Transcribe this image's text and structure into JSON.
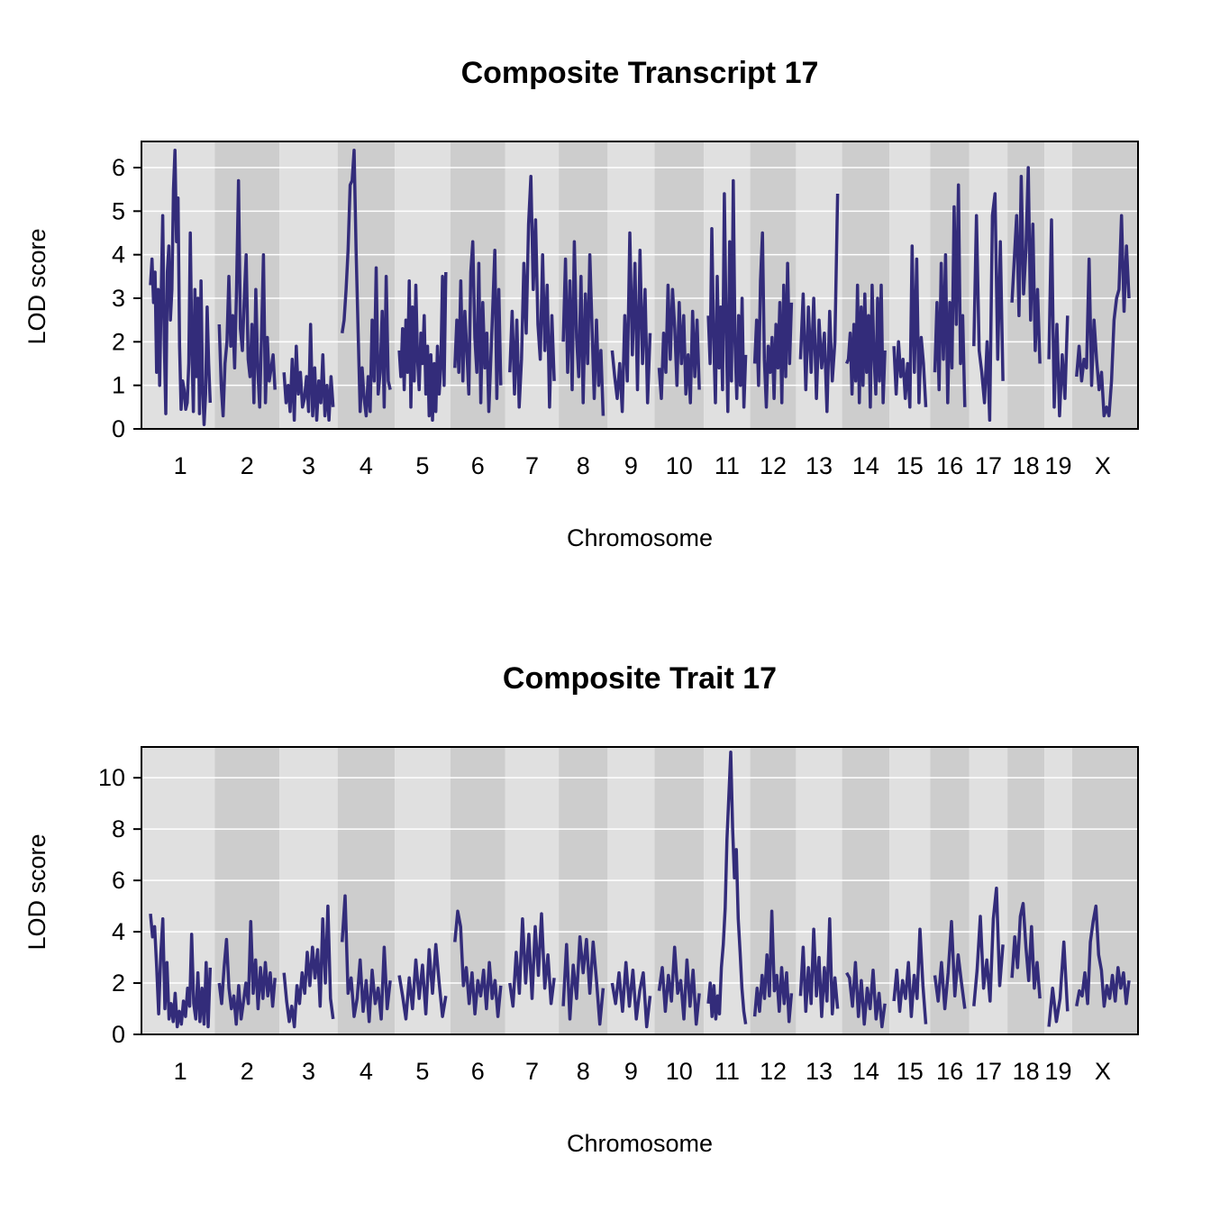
{
  "colors": {
    "line": "#332C7A",
    "band_light": "#E0E0E0",
    "band_dark": "#CDCDCD",
    "grid": "#FFFFFF",
    "frame": "#000000"
  },
  "chromosomes": [
    {
      "label": "1",
      "len": 195
    },
    {
      "label": "2",
      "len": 182
    },
    {
      "label": "3",
      "len": 160
    },
    {
      "label": "4",
      "len": 157
    },
    {
      "label": "5",
      "len": 152
    },
    {
      "label": "6",
      "len": 150
    },
    {
      "label": "7",
      "len": 145
    },
    {
      "label": "8",
      "len": 130
    },
    {
      "label": "9",
      "len": 124
    },
    {
      "label": "10",
      "len": 131
    },
    {
      "label": "11",
      "len": 122
    },
    {
      "label": "12",
      "len": 120
    },
    {
      "label": "13",
      "len": 121
    },
    {
      "label": "14",
      "len": 125
    },
    {
      "label": "15",
      "len": 104
    },
    {
      "label": "16",
      "len": 98
    },
    {
      "label": "17",
      "len": 95
    },
    {
      "label": "18",
      "len": 91
    },
    {
      "label": "19",
      "len": 61
    },
    {
      "label": "X",
      "len": 171
    }
  ],
  "chart_data": [
    {
      "type": "line",
      "title": "Composite Transcript 17",
      "xlabel": "Chromosome",
      "ylabel": "LOD score",
      "ylim": [
        0,
        6.6
      ],
      "yticks": [
        0,
        1,
        2,
        3,
        4,
        5,
        6
      ],
      "grid": true,
      "series": [
        {
          "lod_profile": [
            [
              3.3,
              3.9,
              2.9,
              3.6,
              1.3,
              3.2,
              1.0,
              3.1,
              4.9,
              2.0,
              0.35,
              3.6,
              4.2,
              2.5,
              3.2,
              5.5,
              6.4,
              4.3,
              5.3,
              1.9,
              0.45,
              1.1,
              0.9,
              0.45,
              0.6,
              1.5,
              4.5,
              1.9,
              0.4,
              3.2,
              1.2,
              3.0,
              0.35,
              3.4,
              1.0,
              0.1,
              0.8,
              2.8,
              1.5,
              0.6
            ],
            [
              2.4,
              1.0,
              0.3,
              1.5,
              2.0,
              3.5,
              1.9,
              2.6,
              1.4,
              3.2,
              5.7,
              2.3,
              1.8,
              3.0,
              4.0,
              1.6,
              1.2,
              2.4,
              0.6,
              3.2,
              1.4,
              0.5,
              2.2,
              4.0,
              0.6,
              2.1,
              1.1,
              1.4,
              1.7,
              0.9
            ],
            [
              1.3,
              0.6,
              1.0,
              0.4,
              1.6,
              0.2,
              1.9,
              0.8,
              1.3,
              0.5,
              0.7,
              1.2,
              0.4,
              2.4,
              0.3,
              1.4,
              0.2,
              1.1,
              0.6,
              1.7,
              0.3,
              1.0,
              0.2,
              1.2,
              0.5
            ],
            [
              2.2,
              2.5,
              3.2,
              4.1,
              5.6,
              5.7,
              6.4,
              4.1,
              2.2,
              0.4,
              1.4,
              0.7,
              0.3,
              1.2,
              0.4,
              2.5,
              1.1,
              3.7,
              0.8,
              1.3,
              2.7,
              0.5,
              3.5,
              1.1,
              0.9
            ],
            [
              1.8,
              1.2,
              2.3,
              0.9,
              2.5,
              1.3,
              3.4,
              0.5,
              2.8,
              1.1,
              3.3,
              1.6,
              0.9,
              2.2,
              1.5,
              2.6,
              0.8,
              1.9,
              0.3,
              1.7,
              0.2,
              1.5,
              0.4,
              1.9,
              0.8,
              1.4,
              3.5,
              1.0,
              3.6
            ],
            [
              1.4,
              2.5,
              1.3,
              3.4,
              1.1,
              2.7,
              1.8,
              0.8,
              3.6,
              4.3,
              2.1,
              1.3,
              3.8,
              0.6,
              2.9,
              1.4,
              2.2,
              0.4,
              1.6,
              2.8,
              4.1,
              0.7,
              3.2,
              1.0
            ],
            [
              1.3,
              2.7,
              0.8,
              2.5,
              0.5,
              1.6,
              3.8,
              2.2,
              4.7,
              5.8,
              3.2,
              4.8,
              2.4,
              1.6,
              4.0,
              1.8,
              3.3,
              0.5,
              2.6,
              1.1
            ],
            [
              2.0,
              3.9,
              1.3,
              3.4,
              0.9,
              4.3,
              2.1,
              1.2,
              3.5,
              0.6,
              3.1,
              1.5,
              4.0,
              2.3,
              0.7,
              2.5,
              1.0,
              1.8,
              0.3
            ],
            [
              1.8,
              1.2,
              0.7,
              1.5,
              0.4,
              2.6,
              1.1,
              4.5,
              1.7,
              3.8,
              0.9,
              4.1,
              1.5,
              3.2,
              0.6,
              2.2
            ],
            [
              1.4,
              0.7,
              2.2,
              1.3,
              3.3,
              1.6,
              3.2,
              2.3,
              1.0,
              2.9,
              1.5,
              2.6,
              0.8,
              1.7,
              0.6,
              2.7,
              1.2,
              2.5,
              0.9
            ],
            [
              2.6,
              1.5,
              4.6,
              2.1,
              0.6,
              3.5,
              1.4,
              2.8,
              0.9,
              5.4,
              2.3,
              0.4,
              4.3,
              1.1,
              5.7,
              2.0,
              0.7,
              2.6,
              1.0,
              3.0,
              0.5,
              1.7
            ],
            [
              1.5,
              2.5,
              1.0,
              3.4,
              4.5,
              1.6,
              0.5,
              1.9,
              1.3,
              2.1,
              0.7,
              2.4,
              1.4,
              2.9,
              0.6,
              3.3,
              1.2,
              3.8,
              1.5,
              2.9
            ],
            [
              1.6,
              3.1,
              0.9,
              2.8,
              1.3,
              3.0,
              0.7,
              2.5,
              1.4,
              2.2,
              0.4,
              2.7,
              1.1,
              2.0,
              5.4
            ],
            [
              1.5,
              1.6,
              2.2,
              0.8,
              2.4,
              1.1,
              3.3,
              0.6,
              2.8,
              1.0,
              3.1,
              1.3,
              2.6,
              0.5,
              3.3,
              1.7,
              0.8,
              3.0,
              1.1,
              3.3,
              0.6,
              1.8
            ],
            [
              1.9,
              0.8,
              2.0,
              1.2,
              1.6,
              0.7,
              1.5,
              0.5,
              4.2,
              1.3,
              3.9,
              0.6,
              2.1,
              1.5,
              0.5
            ],
            [
              1.3,
              2.9,
              0.9,
              3.8,
              1.6,
              4.0,
              0.6,
              2.9,
              1.4,
              5.1,
              2.4,
              5.6,
              1.5,
              2.6,
              0.5
            ],
            [
              1.9,
              4.9,
              1.8,
              1.3,
              0.6,
              2.0,
              0.2,
              4.9,
              5.4,
              1.6,
              4.3,
              1.1
            ],
            [
              2.9,
              3.9,
              4.9,
              2.6,
              5.8,
              3.1,
              4.1,
              6.0,
              2.5,
              4.7,
              1.8,
              3.2,
              1.5
            ],
            [
              1.6,
              4.8,
              0.5,
              2.4,
              0.3,
              1.7,
              0.7,
              2.6
            ],
            [
              1.2,
              1.9,
              1.1,
              1.6,
              1.4,
              3.9,
              1.0,
              2.5,
              1.6,
              0.9,
              1.3,
              0.3,
              0.5,
              0.3,
              1.1,
              2.5,
              3.0,
              3.2,
              4.9,
              2.7,
              4.2,
              3.0
            ]
          ]
        }
      ]
    },
    {
      "type": "line",
      "title": "Composite Trait 17",
      "xlabel": "Chromosome",
      "ylabel": "LOD score",
      "ylim": [
        0,
        11.2
      ],
      "yticks": [
        0,
        2,
        4,
        6,
        8,
        10
      ],
      "grid": true,
      "series": [
        {
          "lod_profile": [
            [
              4.7,
              3.8,
              4.2,
              2.6,
              0.8,
              3.1,
              4.5,
              1.0,
              2.8,
              0.6,
              1.2,
              0.5,
              1.6,
              0.3,
              0.9,
              0.4,
              1.3,
              0.7,
              1.8,
              1.1,
              3.9,
              1.2,
              0.6,
              2.4,
              0.5,
              1.8,
              0.4,
              2.8,
              0.3,
              2.6
            ],
            [
              2.0,
              1.2,
              2.6,
              3.7,
              1.8,
              1.0,
              1.5,
              0.4,
              1.9,
              0.6,
              1.3,
              2.0,
              1.2,
              4.4,
              1.6,
              2.9,
              1.0,
              2.6,
              1.4,
              2.8,
              1.5,
              2.4,
              1.1,
              2.2
            ],
            [
              2.4,
              1.3,
              0.5,
              1.1,
              0.3,
              1.9,
              1.2,
              2.4,
              1.6,
              3.2,
              1.9,
              3.4,
              2.2,
              3.3,
              1.1,
              4.5,
              2.0,
              5.0,
              1.4,
              0.6
            ],
            [
              3.6,
              5.4,
              1.6,
              2.2,
              0.7,
              1.4,
              2.9,
              0.9,
              2.1,
              0.5,
              2.5,
              1.2,
              1.8,
              0.6,
              3.4,
              1.0,
              2.1
            ],
            [
              2.3,
              1.5,
              0.6,
              2.2,
              1.0,
              2.9,
              1.4,
              2.7,
              0.8,
              3.3,
              1.6,
              3.5,
              2.0,
              0.7,
              1.5
            ],
            [
              3.6,
              4.8,
              4.2,
              1.9,
              2.6,
              1.2,
              2.4,
              0.8,
              2.1,
              1.5,
              2.5,
              1.0,
              2.8,
              1.4,
              2.1,
              0.7,
              1.9
            ],
            [
              2.0,
              1.1,
              3.2,
              1.6,
              4.5,
              2.0,
              3.9,
              1.4,
              4.2,
              2.3,
              4.7,
              1.8,
              3.1,
              1.2,
              2.2
            ],
            [
              1.1,
              3.5,
              0.6,
              2.7,
              1.4,
              3.8,
              2.4,
              3.7,
              1.6,
              3.6,
              2.1,
              0.4,
              1.8
            ],
            [
              2.0,
              1.2,
              2.4,
              0.9,
              2.8,
              1.1,
              2.5,
              0.6,
              1.7,
              2.4,
              0.3,
              1.5
            ],
            [
              1.7,
              2.6,
              0.9,
              2.3,
              1.3,
              3.4,
              1.6,
              2.1,
              0.6,
              2.9,
              1.1,
              2.5,
              0.4,
              1.6
            ],
            [
              1.2,
              2.0,
              0.7,
              1.9,
              0.6,
              1.5,
              0.8,
              2.6,
              3.5,
              4.9,
              7.6,
              9.3,
              11.0,
              8.0,
              6.1,
              7.2,
              4.5,
              3.2,
              1.8,
              0.9,
              0.4
            ],
            [
              0.7,
              1.8,
              0.9,
              2.3,
              1.4,
              3.1,
              1.5,
              4.8,
              1.7,
              2.3,
              0.9,
              2.6,
              1.2,
              2.4,
              0.5,
              1.6
            ],
            [
              1.5,
              3.4,
              0.9,
              2.6,
              1.2,
              4.1,
              1.5,
              3.0,
              0.7,
              2.6,
              1.3,
              4.5,
              0.8,
              2.2,
              1.0
            ],
            [
              2.4,
              2.2,
              1.1,
              2.8,
              0.7,
              2.1,
              0.4,
              1.8,
              1.0,
              2.5,
              0.6,
              1.6,
              0.3,
              1.2
            ],
            [
              1.3,
              2.5,
              0.9,
              2.1,
              1.4,
              2.8,
              0.7,
              2.3,
              1.4,
              4.1,
              1.9,
              0.4
            ],
            [
              2.3,
              1.3,
              2.8,
              1.0,
              2.4,
              4.4,
              1.5,
              3.1,
              2.0,
              1.0
            ],
            [
              1.1,
              2.5,
              4.6,
              1.8,
              2.9,
              1.3,
              4.5,
              5.7,
              1.9,
              3.5
            ],
            [
              2.2,
              3.8,
              2.6,
              4.6,
              5.1,
              3.4,
              2.1,
              4.2,
              1.8,
              2.8,
              1.4
            ],
            [
              0.3,
              1.8,
              0.5,
              1.4,
              3.6,
              0.9
            ],
            [
              1.1,
              1.7,
              1.5,
              2.4,
              1.2,
              3.6,
              4.4,
              5.0,
              3.1,
              2.5,
              1.1,
              1.9,
              1.4,
              2.3,
              1.3,
              2.6,
              1.8,
              2.4,
              1.2,
              2.1
            ]
          ]
        }
      ]
    }
  ]
}
